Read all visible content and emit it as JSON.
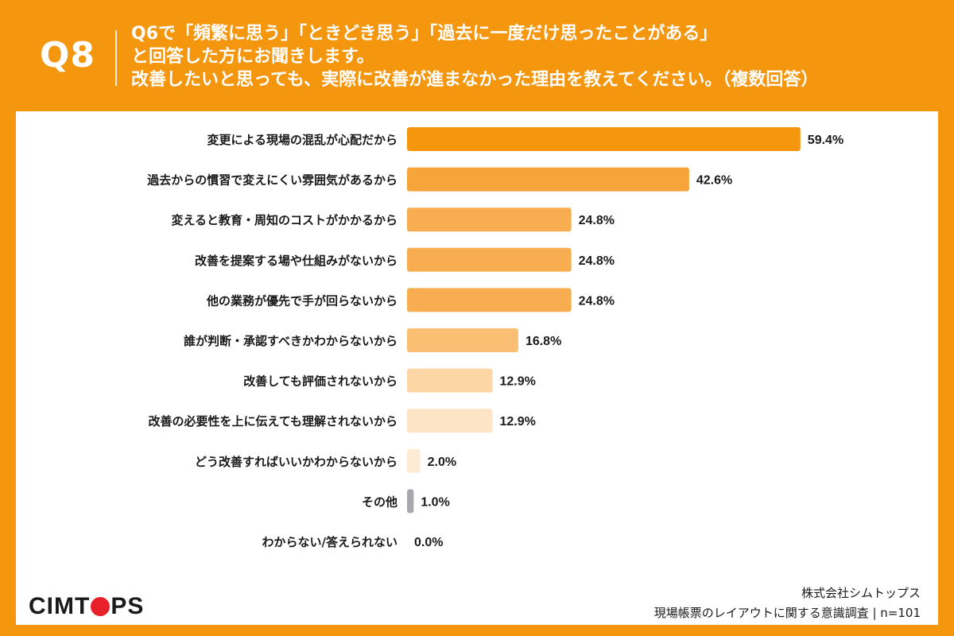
{
  "header": {
    "qnum": "Q8",
    "lines": [
      "Q6で「頻繁に思う」「ときどき思う」「過去に一度だけ思ったことがある」",
      "と回答した方にお聞きします。",
      "改善したいと思っても、実際に改善が進まなかった理由を教えてください。（複数回答）"
    ]
  },
  "chart_data": {
    "type": "bar",
    "orientation": "horizontal",
    "categories": [
      "変更による現場の混乱が心配だから",
      "過去からの慣習で変えにくい雰囲気があるから",
      "変えると教育・周知のコストがかかるから",
      "改善を提案する場や仕組みがないから",
      "他の業務が優先で手が回らないから",
      "誰が判断・承認すべきかわからないから",
      "改善しても評価されないから",
      "改善の必要性を上に伝えても理解されないから",
      "どう改善すればいいかわからないから",
      "その他",
      "わからない/答えられない"
    ],
    "values": [
      59.4,
      42.6,
      24.8,
      24.8,
      24.8,
      16.8,
      12.9,
      12.9,
      2.0,
      1.0,
      0.0
    ],
    "value_labels": [
      "59.4%",
      "42.6%",
      "24.8%",
      "24.8%",
      "24.8%",
      "16.8%",
      "12.9%",
      "12.9%",
      "2.0%",
      "1.0%",
      "0.0%"
    ],
    "colors": [
      "#f5960f",
      "#f7a43a",
      "#f8ae50",
      "#f8ae50",
      "#f8ae50",
      "#fabf72",
      "#fcd6a4",
      "#fde4c4",
      "#fdebd6",
      "#a7a7ad",
      "#f0f0f0"
    ],
    "xlim": [
      0,
      60
    ]
  },
  "brand": {
    "logo_pre": "CIMT",
    "logo_post": "PS"
  },
  "footer": {
    "company": "株式会社シムトップス",
    "survey": "現場帳票のレイアウトに関する意識調査 | n=101"
  }
}
